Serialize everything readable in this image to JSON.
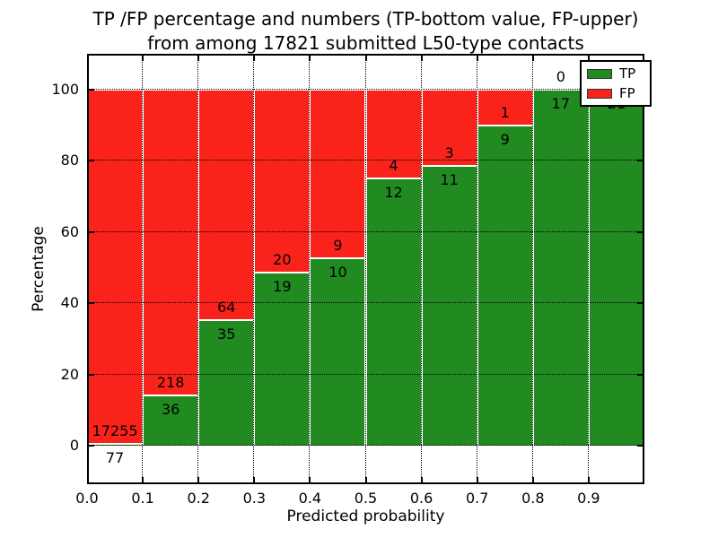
{
  "title": {
    "line1": "TP /FP percentage and numbers (TP-bottom value, FP-upper)",
    "line2": "from among 17821 submitted L50-type contacts"
  },
  "axes": {
    "x_label": "Predicted probability",
    "y_label": "Percentage",
    "x_tick_labels": [
      "0.0",
      "0.1",
      "0.2",
      "0.3",
      "0.4",
      "0.5",
      "0.6",
      "0.7",
      "0.8",
      "0.9"
    ],
    "y_tick_labels": [
      "0",
      "20",
      "40",
      "60",
      "80",
      "100"
    ],
    "y_gridline_values": [
      0,
      20,
      40,
      60,
      80,
      100
    ],
    "x_range": [
      0.0,
      1.0
    ],
    "y_range": [
      0,
      100
    ]
  },
  "legend": {
    "items": [
      {
        "label": "TP",
        "color": "#218a21"
      },
      {
        "label": "FP",
        "color": "#fa231c"
      }
    ]
  },
  "colors": {
    "tp_green": "#218a21",
    "fp_red": "#fa231c",
    "bar_edge": "#ffffff",
    "grid": "#000000",
    "text": "#000000",
    "background": "#ffffff"
  },
  "chart_data": {
    "type": "bar",
    "stacked": true,
    "values_are": "percent of each probability bin; numeric labels show raw counts (TP bottom, FP upper)",
    "title": "TP /FP percentage and numbers (TP-bottom value, FP-upper) from among 17821 submitted L50-type contacts",
    "xlabel": "Predicted probability",
    "ylabel": "Percentage",
    "ylim": [
      0,
      100
    ],
    "grid": "dotted, drawn above bars",
    "legend_position": "upper right",
    "total_submitted_contacts": "17821",
    "categories": [
      "0.0-0.1",
      "0.1-0.2",
      "0.2-0.3",
      "0.3-0.4",
      "0.4-0.5",
      "0.5-0.6",
      "0.6-0.7",
      "0.7-0.8",
      "0.8-0.9",
      "0.9-1.0"
    ],
    "series": [
      {
        "name": "TP",
        "color": "#218a21",
        "counts": [
          77,
          36,
          35,
          19,
          10,
          12,
          11,
          9,
          17,
          21
        ],
        "percent": [
          0.44,
          14.17,
          35.35,
          48.72,
          52.63,
          75.0,
          78.57,
          90.0,
          100.0,
          100.0
        ]
      },
      {
        "name": "FP",
        "color": "#fa231c",
        "counts": [
          17255,
          218,
          64,
          20,
          9,
          4,
          3,
          1,
          0,
          0
        ],
        "percent": [
          99.56,
          85.83,
          64.65,
          51.28,
          47.37,
          25.0,
          21.43,
          10.0,
          0.0,
          0.0
        ]
      }
    ],
    "fp_label_visible": [
      true,
      true,
      true,
      true,
      true,
      true,
      true,
      true,
      true,
      false
    ]
  }
}
